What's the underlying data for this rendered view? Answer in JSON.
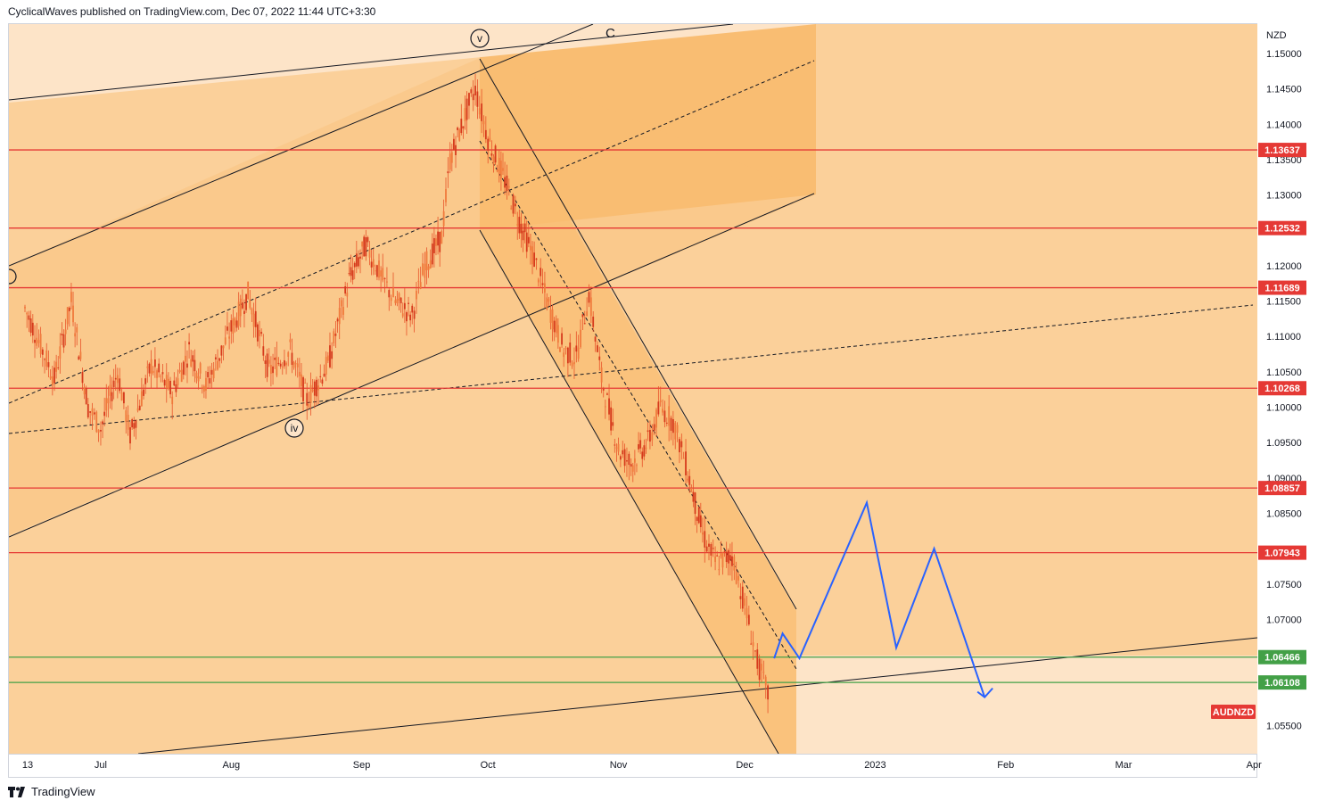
{
  "header": {
    "publisher": "CyclicalWaves published on TradingView.com, Dec 07, 2022 11:44 UTC+3:30"
  },
  "footer": {
    "brand": "TradingView"
  },
  "chart_data": {
    "type": "candlestick",
    "symbol": "AUDNZD",
    "currency": "NZD",
    "y_ticks": [
      "1.15000",
      "1.14500",
      "1.14000",
      "1.13500",
      "1.13000",
      "1.12000",
      "1.11500",
      "1.11000",
      "1.10500",
      "1.10000",
      "1.09500",
      "1.09000",
      "1.08500",
      "1.07500",
      "1.07000",
      "1.05500"
    ],
    "x_ticks": [
      "13",
      "Jul",
      "Aug",
      "Sep",
      "Oct",
      "Nov",
      "Dec",
      "2023",
      "Feb",
      "Mar",
      "Apr"
    ],
    "ylim": [
      1.0512,
      1.1545
    ],
    "levels_red": [
      "1.13637",
      "1.12532",
      "1.11689",
      "1.10268",
      "1.08857",
      "1.07943"
    ],
    "levels_green": [
      "1.06466",
      "1.06108"
    ],
    "wave_labels": [
      "v",
      "iv"
    ],
    "wave_label_c": "C",
    "price_series": [
      {
        "date": "2022-06-13",
        "close": 1.114
      },
      {
        "date": "2022-06-20",
        "close": 1.104
      },
      {
        "date": "2022-06-24",
        "close": 1.115
      },
      {
        "date": "2022-06-28",
        "close": 1.1
      },
      {
        "date": "2022-07-01",
        "close": 1.097
      },
      {
        "date": "2022-07-05",
        "close": 1.105
      },
      {
        "date": "2022-07-08",
        "close": 1.096
      },
      {
        "date": "2022-07-13",
        "close": 1.106
      },
      {
        "date": "2022-07-18",
        "close": 1.102
      },
      {
        "date": "2022-07-22",
        "close": 1.108
      },
      {
        "date": "2022-07-26",
        "close": 1.103
      },
      {
        "date": "2022-08-01",
        "close": 1.111
      },
      {
        "date": "2022-08-05",
        "close": 1.116
      },
      {
        "date": "2022-08-10",
        "close": 1.105
      },
      {
        "date": "2022-08-15",
        "close": 1.108
      },
      {
        "date": "2022-08-19",
        "close": 1.101
      },
      {
        "date": "2022-08-24",
        "close": 1.106
      },
      {
        "date": "2022-08-29",
        "close": 1.118
      },
      {
        "date": "2022-09-02",
        "close": 1.123
      },
      {
        "date": "2022-09-06",
        "close": 1.118
      },
      {
        "date": "2022-09-09",
        "close": 1.115
      },
      {
        "date": "2022-09-13",
        "close": 1.113
      },
      {
        "date": "2022-09-16",
        "close": 1.12
      },
      {
        "date": "2022-09-20",
        "close": 1.124
      },
      {
        "date": "2022-09-22",
        "close": 1.135
      },
      {
        "date": "2022-09-26",
        "close": 1.142
      },
      {
        "date": "2022-09-28",
        "close": 1.145
      },
      {
        "date": "2022-10-01",
        "close": 1.138
      },
      {
        "date": "2022-10-05",
        "close": 1.132
      },
      {
        "date": "2022-10-08",
        "close": 1.127
      },
      {
        "date": "2022-10-12",
        "close": 1.121
      },
      {
        "date": "2022-10-15",
        "close": 1.115
      },
      {
        "date": "2022-10-19",
        "close": 1.108
      },
      {
        "date": "2022-10-22",
        "close": 1.107
      },
      {
        "date": "2022-10-25",
        "close": 1.116
      },
      {
        "date": "2022-10-28",
        "close": 1.104
      },
      {
        "date": "2022-11-01",
        "close": 1.094
      },
      {
        "date": "2022-11-04",
        "close": 1.092
      },
      {
        "date": "2022-11-08",
        "close": 1.095
      },
      {
        "date": "2022-11-11",
        "close": 1.1
      },
      {
        "date": "2022-11-14",
        "close": 1.098
      },
      {
        "date": "2022-11-17",
        "close": 1.092
      },
      {
        "date": "2022-11-21",
        "close": 1.082
      },
      {
        "date": "2022-11-24",
        "close": 1.078
      },
      {
        "date": "2022-11-28",
        "close": 1.079
      },
      {
        "date": "2022-12-01",
        "close": 1.072
      },
      {
        "date": "2022-12-04",
        "close": 1.064
      },
      {
        "date": "2022-12-07",
        "close": 1.0585
      }
    ],
    "projection_path": [
      {
        "date": "2022-12-08",
        "price": 1.0645
      },
      {
        "date": "2022-12-10",
        "price": 1.068
      },
      {
        "date": "2022-12-14",
        "price": 1.0645
      },
      {
        "date": "2022-12-30",
        "price": 1.0865
      },
      {
        "date": "2023-01-06",
        "price": 1.066
      },
      {
        "date": "2023-01-15",
        "price": 1.08
      },
      {
        "date": "2023-01-27",
        "price": 1.059
      }
    ],
    "colors": {
      "red_line": "#e53935",
      "green_line": "#43a047",
      "projection": "#2962ff",
      "fill_light": "#fde4c8",
      "fill_mid": "#fbd09a",
      "fill_dark": "#f9bd72",
      "candle": "#e8532a"
    }
  }
}
